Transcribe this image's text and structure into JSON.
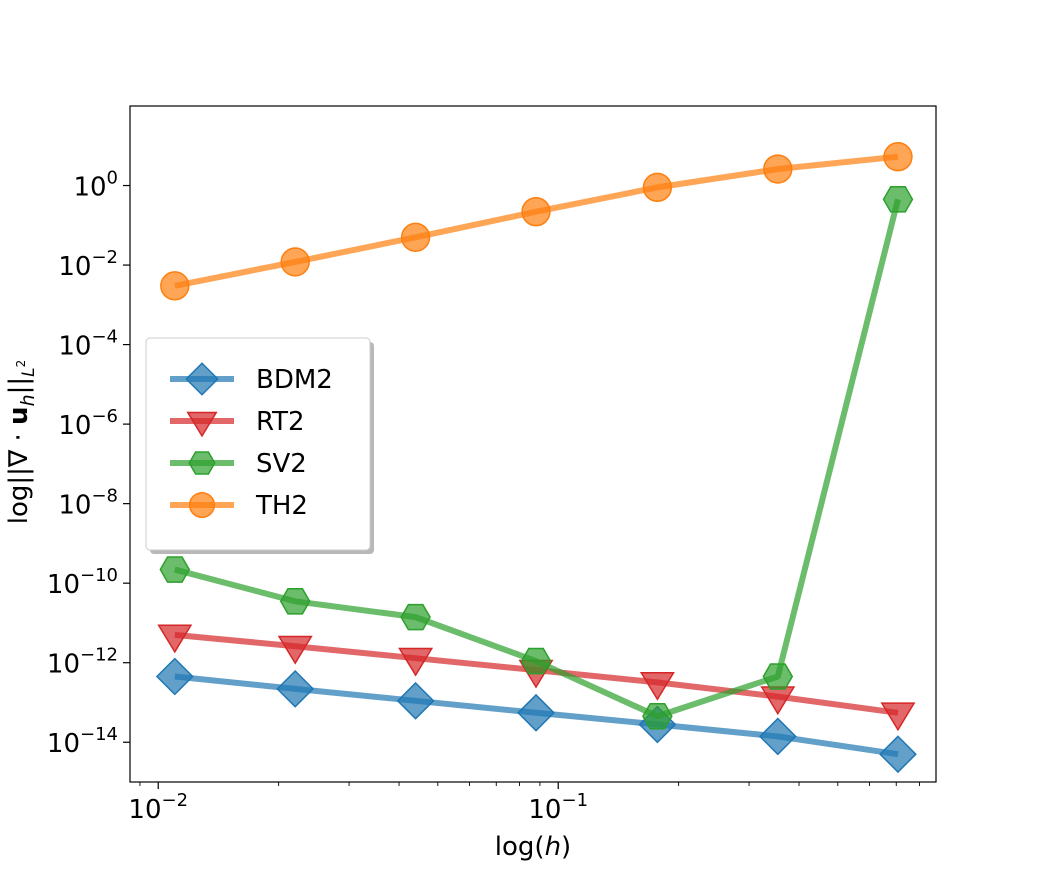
{
  "chart_data": {
    "type": "line",
    "xscale": "log",
    "yscale": "log",
    "xlabel_prefix": "log(",
    "xlabel_var": "h",
    "xlabel_suffix": ")",
    "ylabel": "log||∇ · u_h||_{L²}",
    "xlim": [
      0.0085,
      0.88
    ],
    "ylim": [
      1e-15,
      100.0
    ],
    "x": [
      0.011,
      0.022,
      0.044,
      0.088,
      0.177,
      0.354,
      0.707
    ],
    "x_ticks": [
      {
        "base": "10",
        "exp": "−2",
        "value": 0.01
      },
      {
        "base": "10",
        "exp": "−1",
        "value": 0.1
      }
    ],
    "y_ticks": [
      {
        "base": "10",
        "exp": "0",
        "value": 1
      },
      {
        "base": "10",
        "exp": "−2",
        "value": 0.01
      },
      {
        "base": "10",
        "exp": "−4",
        "value": 0.0001
      },
      {
        "base": "10",
        "exp": "−6",
        "value": 1e-06
      },
      {
        "base": "10",
        "exp": "−8",
        "value": 1e-08
      },
      {
        "base": "10",
        "exp": "−10",
        "value": 1e-10
      },
      {
        "base": "10",
        "exp": "−12",
        "value": 1e-12
      },
      {
        "base": "10",
        "exp": "−14",
        "value": 1e-14
      }
    ],
    "series": [
      {
        "name": "BDM2",
        "color": "#1f77b4",
        "marker": "diamond",
        "values": [
          4.5e-13,
          2.2e-13,
          1.1e-13,
          5.5e-14,
          2.8e-14,
          1.4e-14,
          5e-15
        ]
      },
      {
        "name": "RT2",
        "color": "#d62728",
        "marker": "triangle-down",
        "values": [
          5e-12,
          2.6e-12,
          1.3e-12,
          6.5e-13,
          3.2e-13,
          1.4e-13,
          5.5e-14
        ]
      },
      {
        "name": "SV2",
        "color": "#2ca02c",
        "marker": "hexagon",
        "values": [
          2.2e-10,
          3.5e-11,
          1.4e-11,
          1.1e-12,
          4.5e-14,
          4.5e-13,
          0.45
        ]
      },
      {
        "name": "TH2",
        "color": "#ff7f0e",
        "marker": "circle",
        "values": [
          0.003,
          0.012,
          0.05,
          0.22,
          0.9,
          2.6,
          5.3
        ]
      }
    ],
    "legend_position": "center-left",
    "grid": false
  }
}
